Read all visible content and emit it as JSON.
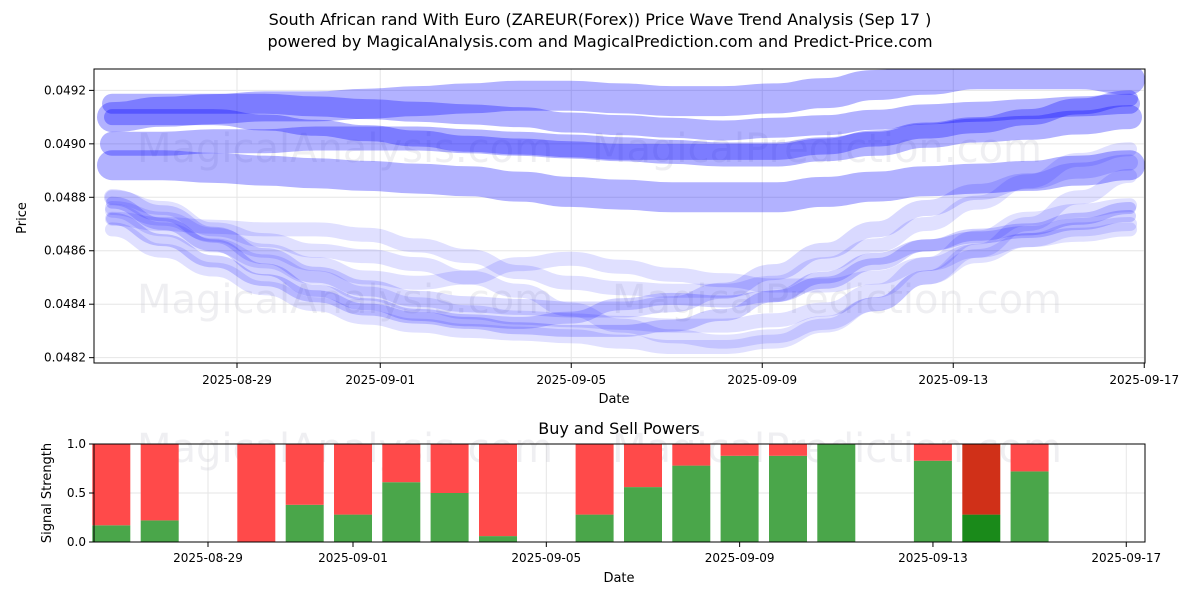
{
  "chart_data": [
    {
      "type": "line",
      "title": "South African rand With Euro (ZAREUR(Forex)) Price Wave Trend Analysis (Sep 17 )",
      "subtitle": "powered by MagicalAnalysis.com and MagicalPrediction.com and Predict-Price.com",
      "xlabel": "Date",
      "ylabel": "Price",
      "x_ticks": [
        "2025-08-29",
        "2025-09-01",
        "2025-09-05",
        "2025-09-09",
        "2025-09-13",
        "2025-09-17"
      ],
      "y_ticks": [
        "0.0482",
        "0.0484",
        "0.0486",
        "0.0488",
        "0.0490",
        "0.0492"
      ],
      "ylim": [
        0.04818,
        0.04928
      ],
      "grid": true,
      "watermarks": [
        "MagicalAnalysis.com",
        "MagicalPrediction.com",
        "MagicalAnalysis.com",
        "MagicalPrediction.com"
      ],
      "x_days": [
        0,
        1,
        2,
        3,
        4,
        5,
        6,
        7,
        8,
        9,
        10,
        11,
        12,
        13,
        14,
        15,
        16,
        17,
        18,
        19,
        20
      ],
      "x_start_label": "2025-08-26",
      "color": "#0000ff",
      "series": [
        {
          "name": "wave-1",
          "width": 16,
          "opacity": 0.3,
          "values": [
            0.0491,
            0.0491,
            0.0491,
            0.04908,
            0.04906,
            0.04904,
            0.04902,
            0.049,
            0.04899,
            0.04898,
            0.04897,
            0.04897,
            0.04897,
            0.04897,
            0.04899,
            0.04902,
            0.04905,
            0.04907,
            0.0491,
            0.04914,
            0.04917
          ]
        },
        {
          "name": "wave-2",
          "width": 24,
          "opacity": 0.3,
          "values": [
            0.049,
            0.049,
            0.04901,
            0.04901,
            0.04902,
            0.04902,
            0.04902,
            0.04901,
            0.049,
            0.04899,
            0.04898,
            0.04897,
            0.04896,
            0.04896,
            0.04898,
            0.049,
            0.04903,
            0.04905,
            0.04906,
            0.04908,
            0.0491
          ]
        },
        {
          "name": "wave-3",
          "width": 30,
          "opacity": 0.3,
          "values": [
            0.0491,
            0.04912,
            0.04913,
            0.04914,
            0.04914,
            0.04915,
            0.04916,
            0.04917,
            0.04918,
            0.04918,
            0.04917,
            0.04916,
            0.04916,
            0.04917,
            0.04919,
            0.04922,
            0.04924,
            0.04926,
            0.04926,
            0.04926,
            0.04924
          ]
        },
        {
          "name": "wave-4",
          "width": 30,
          "opacity": 0.3,
          "values": [
            0.04892,
            0.04892,
            0.04891,
            0.0489,
            0.04889,
            0.04888,
            0.04887,
            0.04886,
            0.04884,
            0.04882,
            0.04881,
            0.0488,
            0.0488,
            0.0488,
            0.04882,
            0.04884,
            0.04886,
            0.04887,
            0.04888,
            0.0489,
            0.04892
          ]
        },
        {
          "name": "wave-5",
          "width": 20,
          "opacity": 0.3,
          "values": [
            0.04915,
            0.04915,
            0.04915,
            0.04915,
            0.04914,
            0.04913,
            0.04912,
            0.04911,
            0.0491,
            0.04908,
            0.04907,
            0.04906,
            0.04905,
            0.04906,
            0.04907,
            0.04909,
            0.04911,
            0.04912,
            0.04913,
            0.04914,
            0.04915
          ]
        },
        {
          "name": "wave-6",
          "width": 14,
          "opacity": 0.12,
          "values": [
            0.04875,
            0.04868,
            0.04862,
            0.04856,
            0.0485,
            0.04844,
            0.0484,
            0.04837,
            0.04835,
            0.04834,
            0.04833,
            0.04832,
            0.04832,
            0.04834,
            0.04838,
            0.04845,
            0.04855,
            0.04865,
            0.04872,
            0.04875,
            0.04877
          ]
        },
        {
          "name": "wave-7",
          "width": 14,
          "opacity": 0.12,
          "values": [
            0.04876,
            0.04872,
            0.04866,
            0.0486,
            0.04855,
            0.0485,
            0.04848,
            0.0485,
            0.04855,
            0.04857,
            0.04854,
            0.04851,
            0.04849,
            0.04847,
            0.04847,
            0.0485,
            0.04855,
            0.0486,
            0.04864,
            0.04866,
            0.04868
          ]
        },
        {
          "name": "wave-8",
          "width": 14,
          "opacity": 0.12,
          "values": [
            0.0488,
            0.04876,
            0.04868,
            0.04864,
            0.0486,
            0.04858,
            0.04855,
            0.0485,
            0.04845,
            0.04838,
            0.04832,
            0.04828,
            0.04826,
            0.04828,
            0.04833,
            0.0484,
            0.0485,
            0.0486,
            0.0487,
            0.0488,
            0.04888
          ]
        },
        {
          "name": "wave-9",
          "width": 14,
          "opacity": 0.12,
          "values": [
            0.04868,
            0.0486,
            0.04853,
            0.04846,
            0.0484,
            0.04835,
            0.04832,
            0.0483,
            0.04829,
            0.04828,
            0.04826,
            0.04824,
            0.04824,
            0.04826,
            0.04832,
            0.0484,
            0.0485,
            0.04858,
            0.04864,
            0.04868,
            0.0487
          ]
        },
        {
          "name": "wave-10",
          "width": 14,
          "opacity": 0.12,
          "values": [
            0.04872,
            0.0487,
            0.04869,
            0.04868,
            0.04868,
            0.04866,
            0.04862,
            0.04858,
            0.04852,
            0.04848,
            0.04846,
            0.04845,
            0.04845,
            0.04848,
            0.04855,
            0.04862,
            0.0487,
            0.04878,
            0.04886,
            0.04894,
            0.04898
          ]
        },
        {
          "name": "wave-11",
          "width": 12,
          "opacity": 0.18,
          "values": [
            0.04878,
            0.0487,
            0.04862,
            0.04853,
            0.04845,
            0.0484,
            0.04836,
            0.04834,
            0.04833,
            0.04835,
            0.0484,
            0.04842,
            0.04841,
            0.04843,
            0.04848,
            0.04855,
            0.04862,
            0.04866,
            0.04868,
            0.04872,
            0.04876
          ]
        },
        {
          "name": "wave-12",
          "width": 12,
          "opacity": 0.18,
          "values": [
            0.04872,
            0.04864,
            0.04856,
            0.04849,
            0.04843,
            0.04838,
            0.04835,
            0.04833,
            0.04831,
            0.0483,
            0.0483,
            0.04832,
            0.04836,
            0.04843,
            0.0485,
            0.04857,
            0.04862,
            0.04865,
            0.04867,
            0.0487,
            0.04873
          ]
        },
        {
          "name": "wave-13",
          "width": 16,
          "opacity": 0.15,
          "values": [
            0.0488,
            0.04874,
            0.04866,
            0.04858,
            0.04851,
            0.04846,
            0.04842,
            0.0484,
            0.04839,
            0.04838,
            0.04838,
            0.0484,
            0.04845,
            0.04852,
            0.0486,
            0.04868,
            0.04876,
            0.04882,
            0.04886,
            0.0489,
            0.04893
          ]
        }
      ]
    },
    {
      "type": "bar",
      "title": "Buy and Sell Powers",
      "xlabel": "Date",
      "ylabel": "Signal Strength",
      "x_ticks": [
        "2025-08-29",
        "2025-09-01",
        "2025-09-05",
        "2025-09-09",
        "2025-09-13",
        "2025-09-17"
      ],
      "y_ticks": [
        "0.0",
        "0.5",
        "1.0"
      ],
      "ylim": [
        0,
        1
      ],
      "grid": true,
      "watermarks": [
        "MagicalAnalysis.com",
        "MagicalPrediction.com"
      ],
      "buy_color": "#4aa64a",
      "sell_color": "#ff4a4a",
      "highlight_buy_color": "#1a8a1a",
      "highlight_sell_color": "#d03018",
      "categories": [
        "2025-08-27",
        "2025-08-28",
        "2025-08-30",
        "2025-08-31",
        "2025-09-01",
        "2025-09-02",
        "2025-09-03",
        "2025-09-04",
        "2025-09-06",
        "2025-09-07",
        "2025-09-08",
        "2025-09-09",
        "2025-09-10",
        "2025-09-11",
        "2025-09-13",
        "2025-09-14",
        "2025-09-15"
      ],
      "series": [
        {
          "name": "Buy",
          "values": [
            0.17,
            0.22,
            0.0,
            0.38,
            0.28,
            0.61,
            0.5,
            0.06,
            0.28,
            0.56,
            0.78,
            0.88,
            0.88,
            1.0,
            0.83,
            0.28,
            0.72
          ]
        },
        {
          "name": "Sell",
          "values": [
            0.83,
            0.78,
            1.0,
            0.62,
            0.72,
            0.39,
            0.5,
            0.94,
            0.72,
            0.44,
            0.22,
            0.12,
            0.12,
            0.0,
            0.17,
            0.72,
            0.28
          ]
        }
      ],
      "highlight_index": 15
    }
  ]
}
